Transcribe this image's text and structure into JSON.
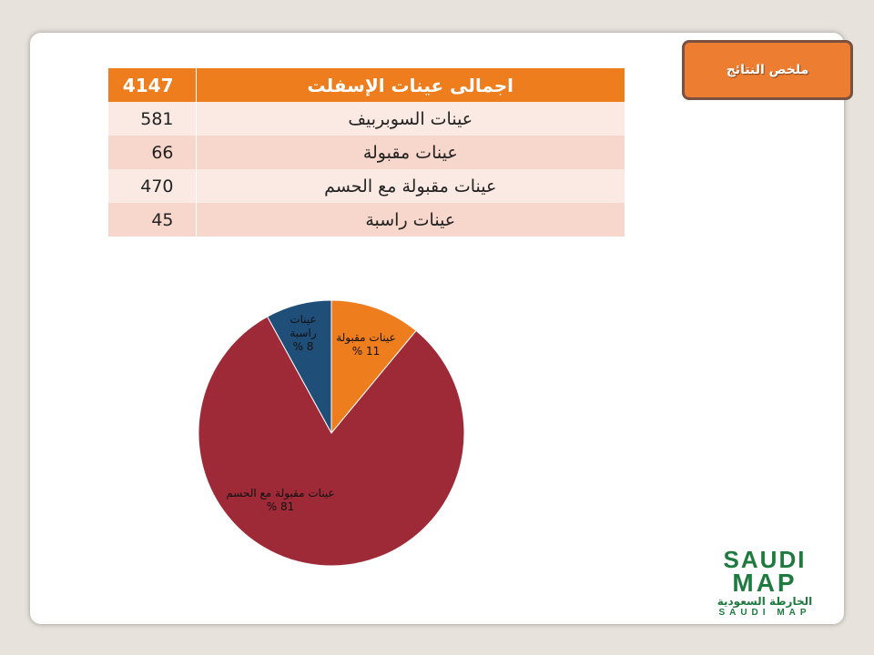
{
  "summary_button": "ملخص النتائج",
  "table": {
    "header": {
      "value": "4147",
      "label": "اجمالى عينات الإسفلت"
    },
    "rows": [
      {
        "value": "581",
        "label": "عينات السوبربيف"
      },
      {
        "value": "66",
        "label": "عينات مقبولة"
      },
      {
        "value": "470",
        "label": "عينات مقبولة مع الحسم"
      },
      {
        "value": "45",
        "label": "عينات راسبة"
      }
    ]
  },
  "chart_data": {
    "type": "pie",
    "slices": [
      {
        "label": "عينات مقبولة",
        "value": 11,
        "display": "11 %",
        "color": "#ee7d1e"
      },
      {
        "label": "عينات مقبولة مع الحسم",
        "value": 81,
        "display": "81 %",
        "color": "#9e2a37"
      },
      {
        "label": "عينات راسبة",
        "value": 8,
        "display": "8 %",
        "color": "#1f4e79"
      }
    ]
  },
  "logo": {
    "line1": "SAUDI",
    "line2": "MAP",
    "arabic": "الخارطة السعودية",
    "footer": "SAUDI MAP",
    "color": "#1e7a3e"
  }
}
